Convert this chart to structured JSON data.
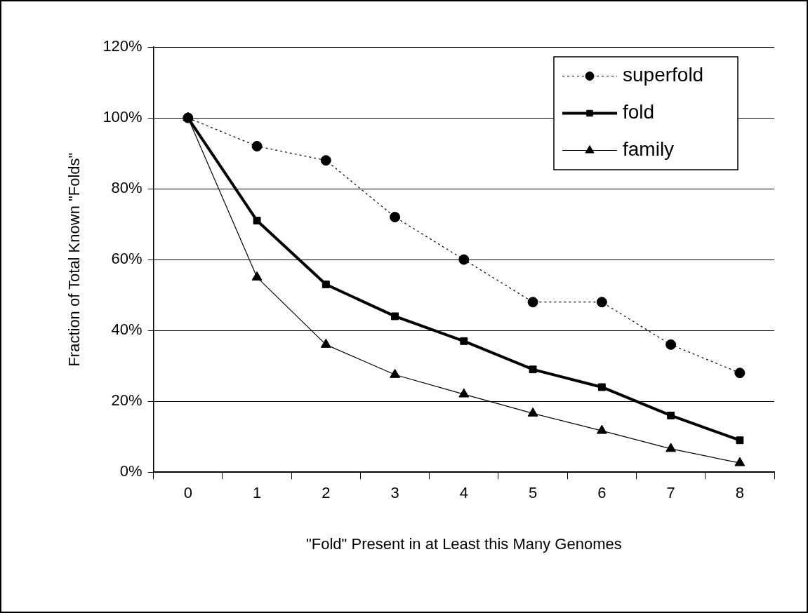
{
  "chart_data": {
    "type": "line",
    "xlabel": "\"Fold\" Present in at Least this Many Genomes",
    "ylabel": "Fraction of Total Known \"Folds\"",
    "categories": [
      "0",
      "1",
      "2",
      "3",
      "4",
      "5",
      "6",
      "7",
      "8"
    ],
    "series": [
      {
        "name": "superfold",
        "color": "#000000",
        "marker": "circle",
        "line_style": "dotted",
        "values": [
          100,
          92,
          88,
          72,
          60,
          48,
          48,
          36,
          28
        ]
      },
      {
        "name": "fold",
        "color": "#000000",
        "marker": "square",
        "line_style": "solid",
        "values": [
          100,
          71,
          53,
          44,
          37,
          29,
          24,
          16,
          9
        ]
      },
      {
        "name": "family",
        "color": "#000000",
        "marker": "triangle",
        "line_style": "solid",
        "values": [
          100,
          55,
          36,
          27.5,
          22,
          16.6,
          11.7,
          6.6,
          2.6
        ]
      }
    ],
    "ylim": [
      0,
      120
    ],
    "yticks": [
      {
        "value": 0,
        "label": "0%"
      },
      {
        "value": 20,
        "label": "20%"
      },
      {
        "value": 40,
        "label": "40%"
      },
      {
        "value": 60,
        "label": "60%"
      },
      {
        "value": 80,
        "label": "80%"
      },
      {
        "value": 100,
        "label": "100%"
      },
      {
        "value": 120,
        "label": "120%"
      }
    ],
    "grid": "y",
    "legend": "top right"
  }
}
